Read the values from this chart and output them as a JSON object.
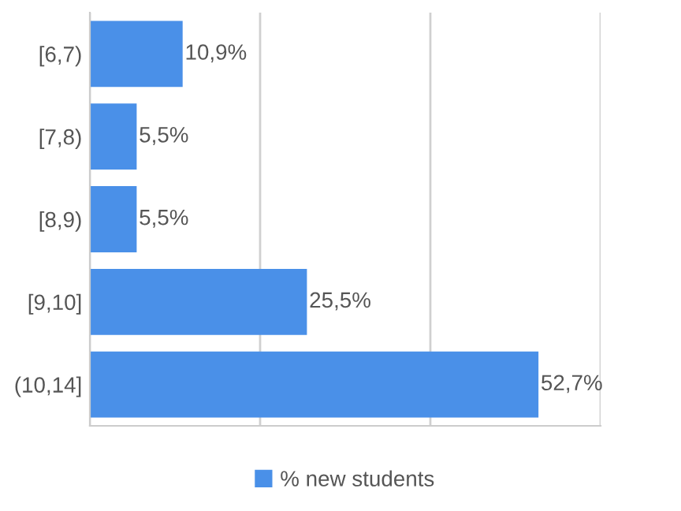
{
  "chart_data": {
    "type": "bar",
    "orientation": "horizontal",
    "categories": [
      "[6,7)",
      "[7,8)",
      "[8,9)",
      "[9,10]",
      "(10,14]"
    ],
    "series": [
      {
        "name": "% new students",
        "color": "#4a90e8",
        "values": [
          10.9,
          5.5,
          5.5,
          25.5,
          52.7
        ],
        "value_labels": [
          "10,9%",
          "5,5%",
          "5,5%",
          "25,5%",
          "52,7%"
        ]
      }
    ],
    "xlim": [
      0,
      60
    ],
    "xticks": [
      {
        "value": 0,
        "label": null
      },
      {
        "value": 20,
        "label": null
      },
      {
        "value": 40,
        "label": null
      },
      {
        "value": 60,
        "label": null
      }
    ],
    "tick_labels": "y",
    "grid": "x",
    "legend": "bottom"
  }
}
